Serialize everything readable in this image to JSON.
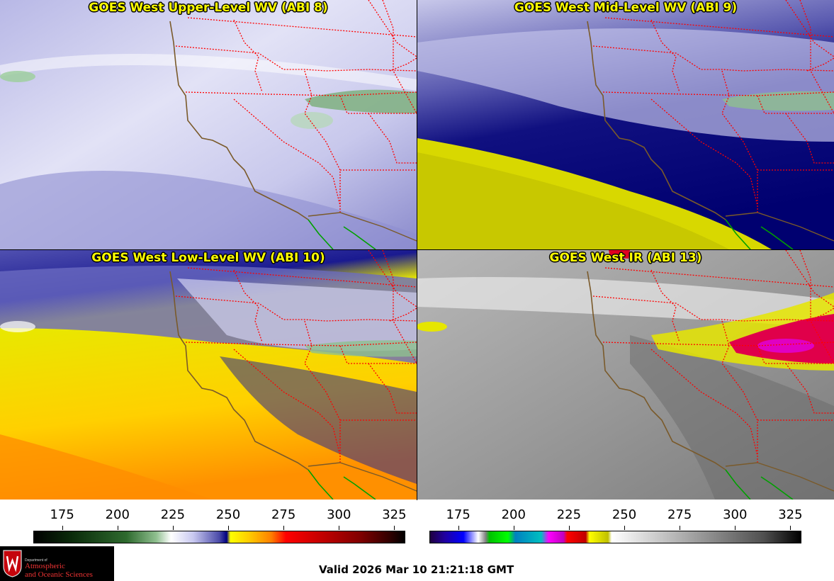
{
  "panels": {
    "upper_level": {
      "title": "GOES West Upper-Level WV (ABI 8)"
    },
    "mid_level": {
      "title": "GOES West Mid-Level WV (ABI 9)"
    },
    "low_level": {
      "title": "GOES West Low-Level WV (ABI 10)"
    },
    "infrared": {
      "title": "GOES West IR (ABI 13)"
    }
  },
  "colorbars": {
    "water_vapor": {
      "ticks": [
        "175",
        "200",
        "225",
        "250",
        "275",
        "300",
        "325"
      ],
      "min": 162,
      "max": 330
    },
    "infrared": {
      "ticks": [
        "175",
        "200",
        "225",
        "250",
        "275",
        "300",
        "325"
      ],
      "min": 162,
      "max": 330
    }
  },
  "logo": {
    "department": "Department of",
    "line1": "Atmospheric",
    "line2": "and Oceanic Sciences"
  },
  "valid_time": "Valid 2026 Mar 10 21:21:18 GMT",
  "colors": {
    "coastline": "#7a5a2a",
    "state_borders": "#ff0000",
    "mexico_border": "#00a000",
    "title_text": "#ffff00"
  }
}
